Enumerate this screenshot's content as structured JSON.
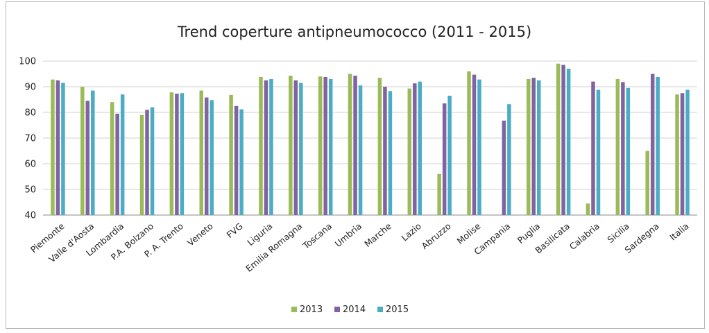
{
  "chart_data": {
    "type": "bar",
    "title": "Trend coperture antipneumococco (2011 - 2015)",
    "xlabel": "",
    "ylabel": "",
    "ylim": [
      40,
      100
    ],
    "yticks": [
      40,
      50,
      60,
      70,
      80,
      90,
      100
    ],
    "grid": true,
    "legend_position": "bottom",
    "categories": [
      "Piemonte",
      "Valle d'Aosta",
      "Lombardia",
      "P.A. Bolzano",
      "P. A. Trento",
      "Veneto",
      "FVG",
      "Liguria",
      "Emilia Romagna",
      "Toscana",
      "Umbria",
      "Marche",
      "Lazio",
      "Abruzzo",
      "Molise",
      "Campania",
      "Puglia",
      "Basilicata",
      "Calabria",
      "Sicilia",
      "Sardegna",
      "Italia"
    ],
    "series": [
      {
        "name": "2013",
        "color": "#9BBB59",
        "values": [
          92.8,
          90.0,
          84.0,
          79.0,
          87.8,
          88.5,
          86.8,
          93.8,
          94.3,
          94.0,
          95.0,
          93.5,
          89.3,
          56.0,
          96.0,
          null,
          93.0,
          99.0,
          44.5,
          93.0,
          65.0,
          87.0
        ]
      },
      {
        "name": "2014",
        "color": "#8064A2",
        "values": [
          92.5,
          84.5,
          79.5,
          81.0,
          87.3,
          85.8,
          82.5,
          92.5,
          92.5,
          93.8,
          94.3,
          90.0,
          91.3,
          83.5,
          94.7,
          76.8,
          93.5,
          98.5,
          92.0,
          91.8,
          95.0,
          87.5
        ]
      },
      {
        "name": "2015",
        "color": "#4BACC6",
        "values": [
          91.5,
          88.5,
          87.0,
          82.0,
          87.5,
          84.8,
          81.2,
          93.0,
          91.5,
          93.0,
          90.5,
          88.3,
          92.0,
          86.5,
          92.8,
          83.2,
          92.5,
          97.0,
          88.8,
          89.5,
          93.8,
          88.8
        ]
      }
    ]
  }
}
